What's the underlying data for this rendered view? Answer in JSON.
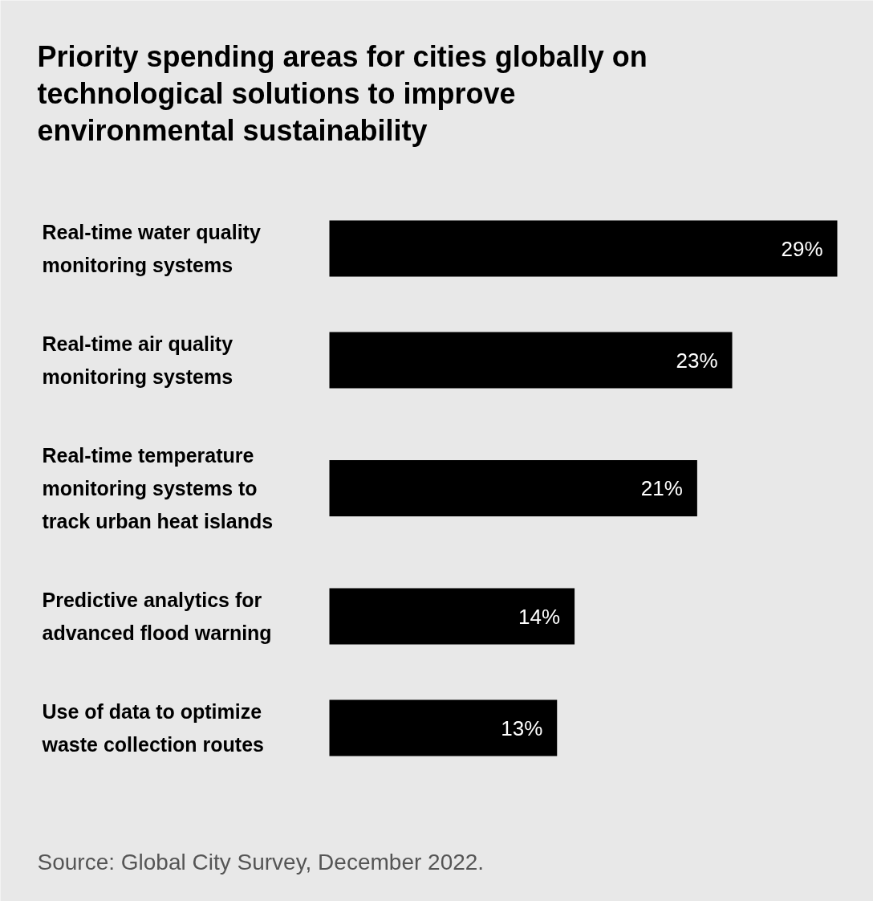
{
  "chart_data": {
    "type": "bar",
    "orientation": "horizontal",
    "title": "Priority spending areas for cities globally on technological solutions to improve environmental sustainability",
    "categories": [
      "Real-time water quality monitoring systems",
      "Real-time air quality monitoring systems",
      "Real-time temperature monitoring systems to track urban heat islands",
      "Predictive analytics for advanced flood warning",
      "Use of data to optimize waste collection routes"
    ],
    "values": [
      29,
      23,
      21,
      14,
      13
    ],
    "value_labels": [
      "29%",
      "23%",
      "21%",
      "14%",
      "13%"
    ],
    "color": "#000000",
    "annotations": [
      "Source: Global City Survey, December 2022."
    ]
  }
}
